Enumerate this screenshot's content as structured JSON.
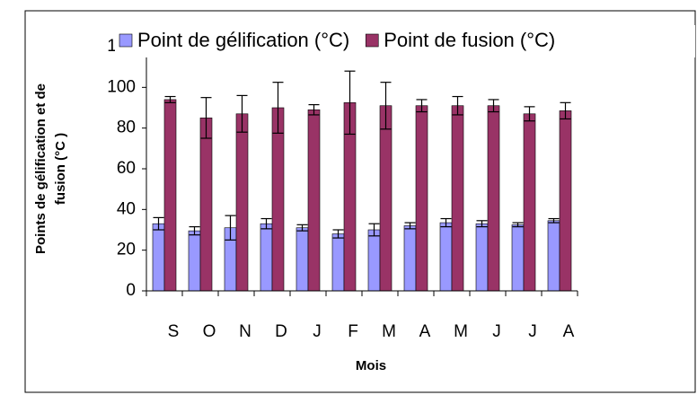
{
  "chart_data": {
    "type": "bar",
    "xlabel": "Mois",
    "ylabel": [
      "Points de gélification et de",
      "fusion (°C )"
    ],
    "categories": [
      "S",
      "O",
      "N",
      "D",
      "J",
      "F",
      "M",
      "A",
      "M",
      "J",
      "J",
      "A"
    ],
    "series": [
      {
        "name": "Point de gélification (°C)",
        "color": "#9999ff",
        "values": [
          33,
          29.5,
          31,
          33,
          31,
          28,
          30,
          32,
          33.5,
          33,
          32.5,
          34.5
        ],
        "errors": [
          3,
          2,
          6,
          2.5,
          1.5,
          2,
          3,
          1.5,
          2,
          1.5,
          1,
          1
        ]
      },
      {
        "name": "Point de fusion (°C)",
        "color": "#993366",
        "values": [
          94,
          85,
          87,
          90,
          89,
          92.5,
          91,
          91,
          91,
          91,
          87,
          88.5
        ],
        "errors": [
          1.5,
          10,
          9,
          12.5,
          2.5,
          15.5,
          11.5,
          3,
          4.5,
          3,
          3.5,
          4
        ]
      }
    ],
    "ylim": [
      0,
      120
    ],
    "yticks": [
      0,
      20,
      40,
      60,
      80,
      100,
      120
    ],
    "grid": false,
    "legend": "top"
  }
}
